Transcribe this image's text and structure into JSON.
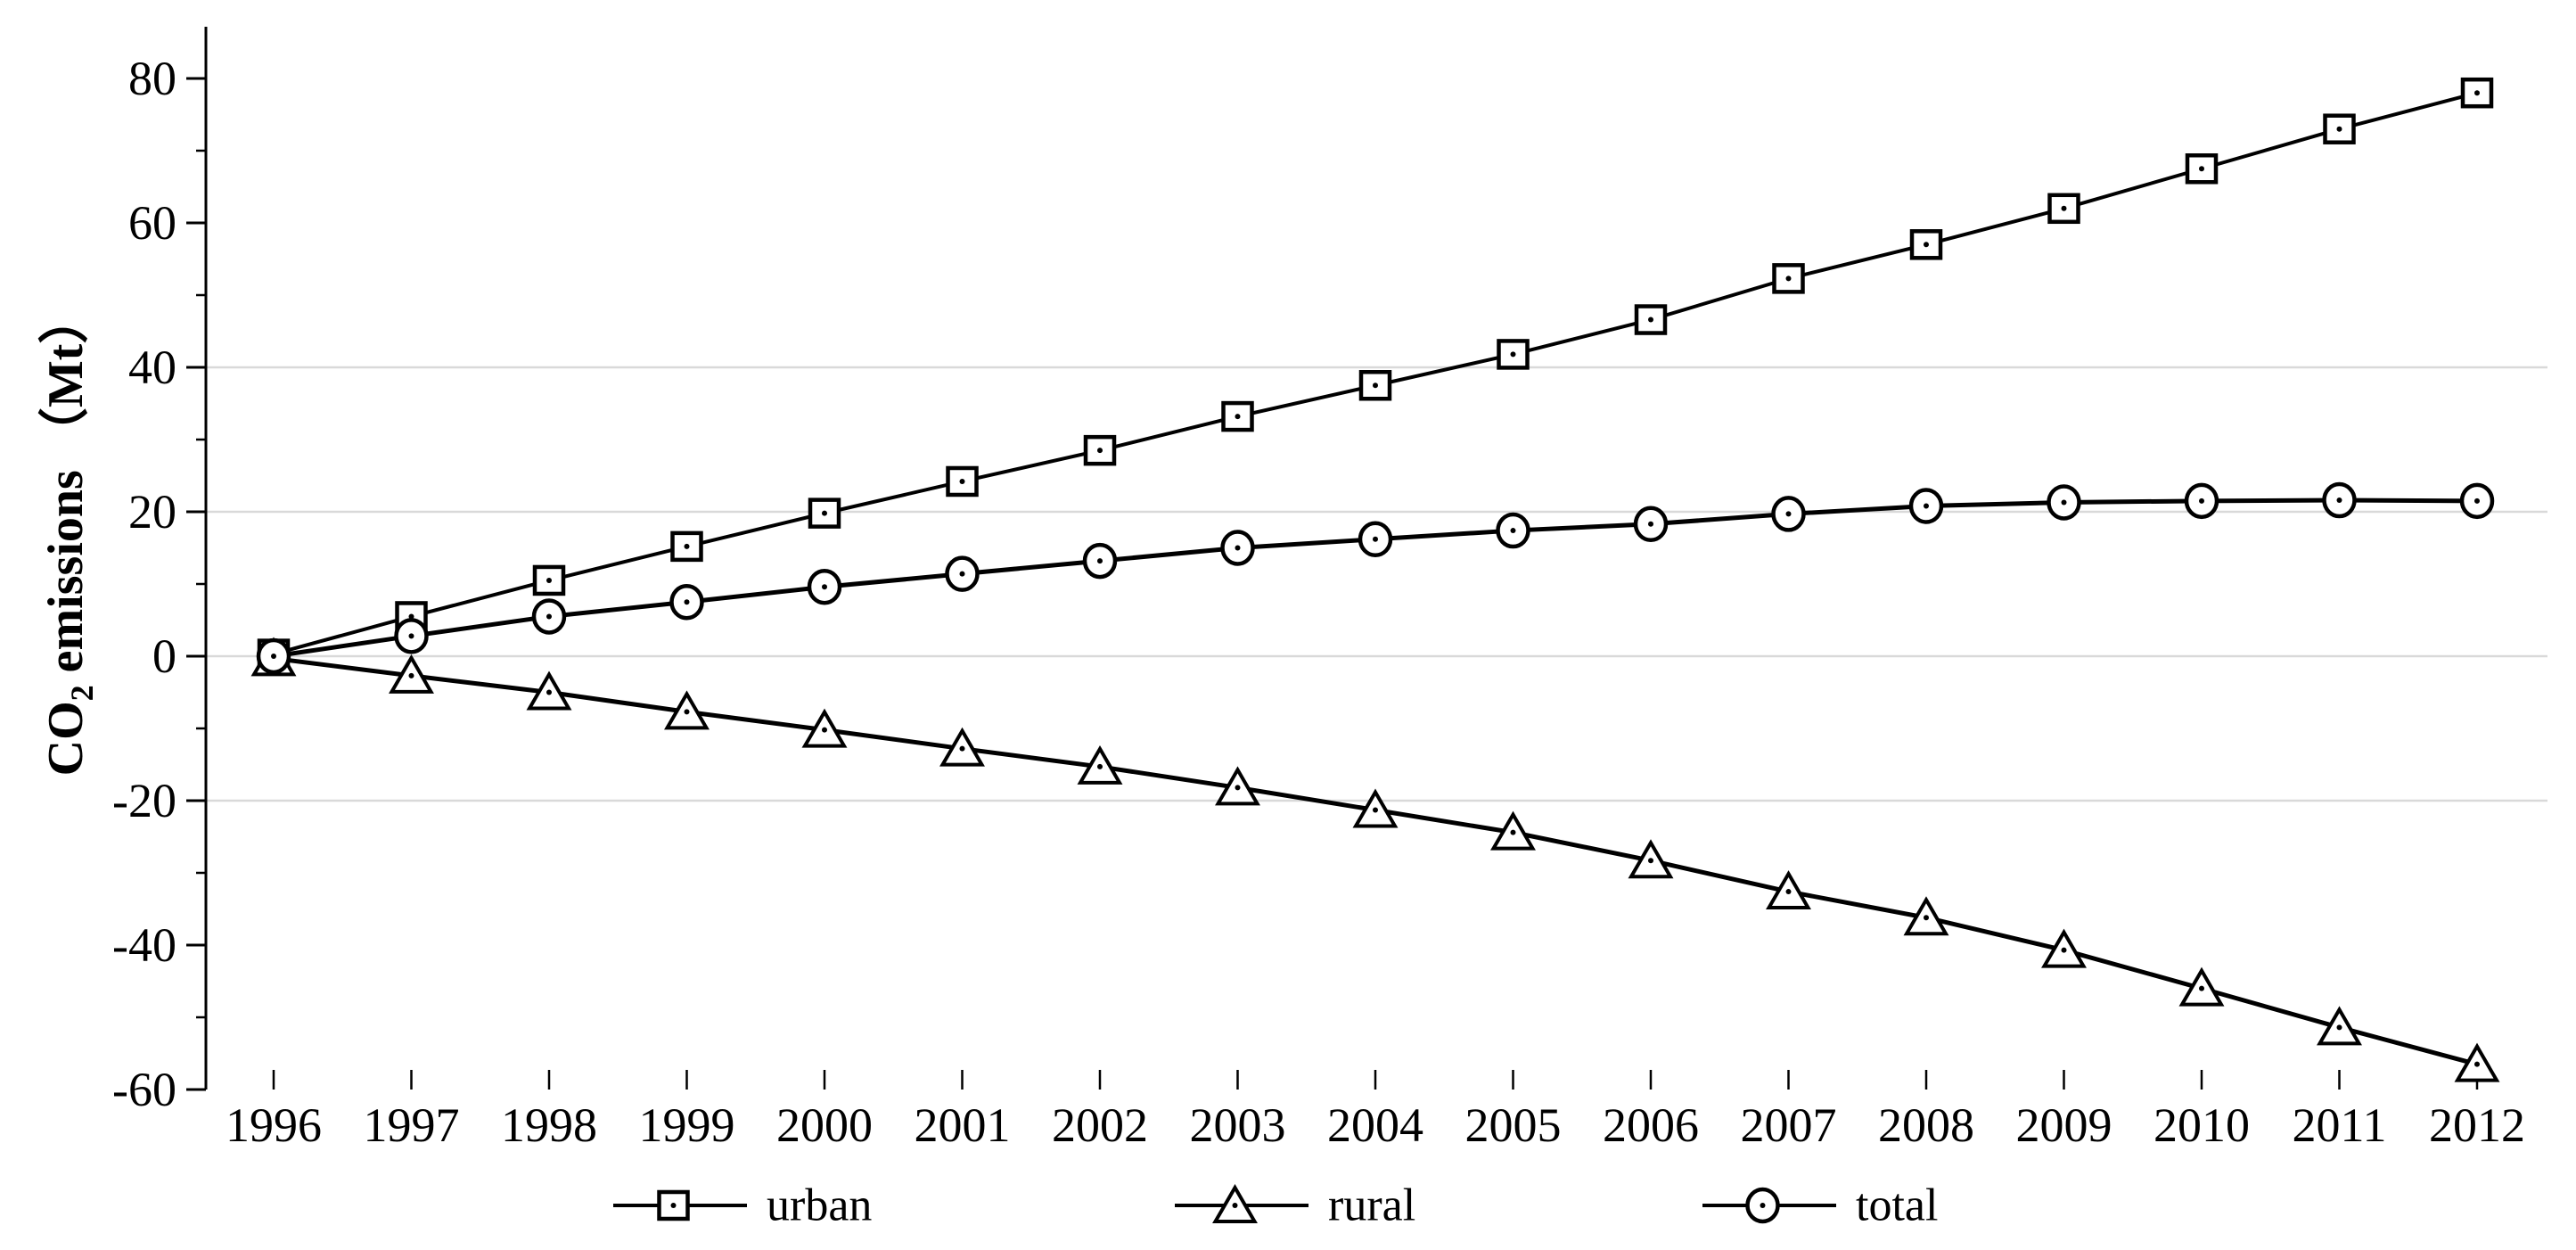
{
  "figure": {
    "background": "#ffffff"
  },
  "chart_data": {
    "type": "line",
    "title": "",
    "xlabel": "",
    "ylabel": {
      "full": "CO2 emissions （Mt）",
      "prefix": "CO",
      "subscript": "2",
      "suffix": " emissions （Mt）"
    },
    "x": [
      1996,
      1997,
      1998,
      1999,
      2000,
      2001,
      2002,
      2003,
      2004,
      2005,
      2006,
      2007,
      2008,
      2009,
      2010,
      2011,
      2012
    ],
    "xtick_labels": [
      "1996",
      "1997",
      "1998",
      "1999",
      "2000",
      "2001",
      "2002",
      "2003",
      "2004",
      "2005",
      "2006",
      "2007",
      "2008",
      "2009",
      "2010",
      "2011",
      "2012"
    ],
    "ylim": [
      -60,
      80
    ],
    "yticks_major": [
      80,
      60,
      40,
      20,
      0,
      -20,
      -40,
      -60
    ],
    "ytick_labels": [
      "80",
      "60",
      "40",
      "20",
      "0",
      "-20",
      "-40",
      "-60"
    ],
    "yticks_minor": [
      70,
      50,
      30,
      10,
      -10,
      -30,
      -50
    ],
    "gridlines_at": [
      40,
      20,
      0,
      -20
    ],
    "grid_on": true,
    "series": [
      {
        "name": "urban",
        "marker": "square",
        "values": [
          0.3,
          5.5,
          10.5,
          15.2,
          19.8,
          24.2,
          28.5,
          33.2,
          37.5,
          41.8,
          46.6,
          52.3,
          57.0,
          62.0,
          67.5,
          73.0,
          78.0
        ]
      },
      {
        "name": "rural",
        "marker": "triangle",
        "values": [
          -0.3,
          -2.7,
          -5.0,
          -7.7,
          -10.2,
          -12.8,
          -15.3,
          -18.2,
          -21.3,
          -24.4,
          -28.3,
          -32.6,
          -36.2,
          -40.7,
          -46.0,
          -51.4,
          -56.5
        ]
      },
      {
        "name": "total",
        "marker": "circle",
        "values": [
          0.0,
          2.8,
          5.5,
          7.5,
          9.6,
          11.4,
          13.2,
          15.0,
          16.2,
          17.4,
          18.3,
          19.7,
          20.8,
          21.3,
          21.5,
          21.6,
          21.5
        ]
      }
    ],
    "legend": [
      {
        "label": "urban",
        "marker": "square"
      },
      {
        "label": "rural",
        "marker": "triangle"
      },
      {
        "label": "total",
        "marker": "circle"
      }
    ],
    "legend_position": "bottom-center",
    "colors": {
      "line": "#000000",
      "marker_fill": "#ffffff",
      "grid": "#d9d9d9",
      "text": "#000000",
      "background": "#ffffff"
    }
  }
}
